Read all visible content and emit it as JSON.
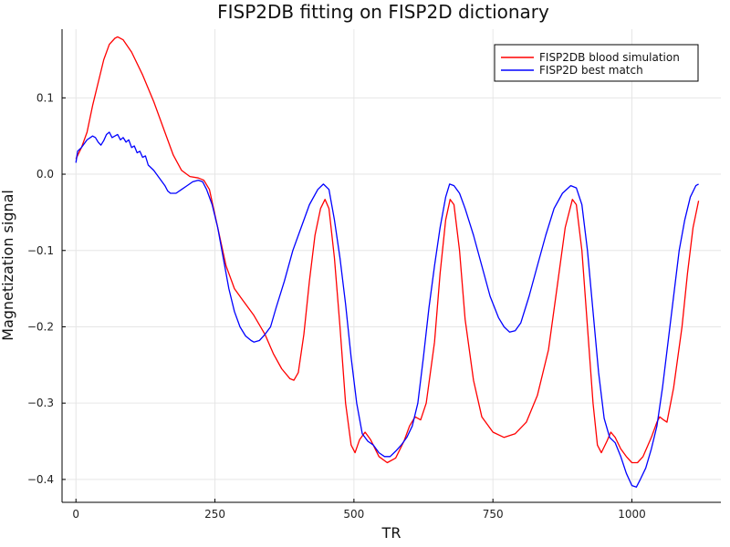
{
  "chart_data": {
    "type": "line",
    "title": "FISP2DB fitting on FISP2D dictionary",
    "xlabel": "TR",
    "ylabel": "Magnetization signal",
    "xlim": [
      -25,
      1160
    ],
    "ylim": [
      -0.43,
      0.19
    ],
    "xticks": [
      0,
      250,
      500,
      750,
      1000
    ],
    "yticks": [
      -0.4,
      -0.3,
      -0.2,
      -0.1,
      0.0,
      0.1
    ],
    "ytick_labels": [
      "−0.4",
      "−0.3",
      "−0.2",
      "−0.1",
      "0.0",
      "0.1"
    ],
    "grid": true,
    "legend_position": "top-right",
    "series": [
      {
        "name": "FISP2DB blood simulation",
        "color": "#ff0000",
        "points": [
          [
            0,
            0.02
          ],
          [
            10,
            0.035
          ],
          [
            20,
            0.055
          ],
          [
            30,
            0.09
          ],
          [
            40,
            0.12
          ],
          [
            50,
            0.15
          ],
          [
            60,
            0.17
          ],
          [
            70,
            0.178
          ],
          [
            75,
            0.18
          ],
          [
            85,
            0.176
          ],
          [
            100,
            0.16
          ],
          [
            120,
            0.13
          ],
          [
            140,
            0.095
          ],
          [
            160,
            0.055
          ],
          [
            175,
            0.025
          ],
          [
            190,
            0.005
          ],
          [
            205,
            -0.003
          ],
          [
            220,
            -0.005
          ],
          [
            230,
            -0.008
          ],
          [
            240,
            -0.02
          ],
          [
            255,
            -0.07
          ],
          [
            270,
            -0.12
          ],
          [
            285,
            -0.15
          ],
          [
            300,
            -0.165
          ],
          [
            320,
            -0.185
          ],
          [
            340,
            -0.21
          ],
          [
            355,
            -0.235
          ],
          [
            370,
            -0.255
          ],
          [
            385,
            -0.268
          ],
          [
            392,
            -0.27
          ],
          [
            400,
            -0.26
          ],
          [
            410,
            -0.21
          ],
          [
            420,
            -0.14
          ],
          [
            430,
            -0.08
          ],
          [
            440,
            -0.045
          ],
          [
            448,
            -0.033
          ],
          [
            455,
            -0.045
          ],
          [
            465,
            -0.11
          ],
          [
            475,
            -0.2
          ],
          [
            485,
            -0.3
          ],
          [
            495,
            -0.355
          ],
          [
            502,
            -0.365
          ],
          [
            510,
            -0.348
          ],
          [
            520,
            -0.338
          ],
          [
            530,
            -0.348
          ],
          [
            545,
            -0.37
          ],
          [
            560,
            -0.378
          ],
          [
            575,
            -0.372
          ],
          [
            590,
            -0.35
          ],
          [
            600,
            -0.33
          ],
          [
            610,
            -0.318
          ],
          [
            620,
            -0.322
          ],
          [
            630,
            -0.3
          ],
          [
            645,
            -0.22
          ],
          [
            655,
            -0.13
          ],
          [
            665,
            -0.06
          ],
          [
            673,
            -0.033
          ],
          [
            680,
            -0.04
          ],
          [
            690,
            -0.1
          ],
          [
            700,
            -0.19
          ],
          [
            715,
            -0.27
          ],
          [
            730,
            -0.318
          ],
          [
            750,
            -0.338
          ],
          [
            770,
            -0.345
          ],
          [
            790,
            -0.34
          ],
          [
            810,
            -0.325
          ],
          [
            830,
            -0.29
          ],
          [
            850,
            -0.23
          ],
          [
            865,
            -0.15
          ],
          [
            880,
            -0.07
          ],
          [
            893,
            -0.033
          ],
          [
            900,
            -0.04
          ],
          [
            910,
            -0.1
          ],
          [
            920,
            -0.2
          ],
          [
            930,
            -0.3
          ],
          [
            938,
            -0.355
          ],
          [
            945,
            -0.365
          ],
          [
            955,
            -0.35
          ],
          [
            962,
            -0.338
          ],
          [
            970,
            -0.345
          ],
          [
            980,
            -0.36
          ],
          [
            990,
            -0.37
          ],
          [
            1000,
            -0.378
          ],
          [
            1010,
            -0.378
          ],
          [
            1020,
            -0.37
          ],
          [
            1035,
            -0.345
          ],
          [
            1045,
            -0.325
          ],
          [
            1050,
            -0.318
          ],
          [
            1057,
            -0.322
          ],
          [
            1063,
            -0.325
          ],
          [
            1075,
            -0.28
          ],
          [
            1090,
            -0.2
          ],
          [
            1100,
            -0.13
          ],
          [
            1110,
            -0.07
          ],
          [
            1120,
            -0.035
          ]
        ]
      },
      {
        "name": "FISP2D best match",
        "color": "#0000ff",
        "points": [
          [
            0,
            0.015
          ],
          [
            3,
            0.03
          ],
          [
            10,
            0.035
          ],
          [
            20,
            0.045
          ],
          [
            30,
            0.05
          ],
          [
            35,
            0.048
          ],
          [
            40,
            0.042
          ],
          [
            45,
            0.038
          ],
          [
            50,
            0.044
          ],
          [
            55,
            0.052
          ],
          [
            60,
            0.055
          ],
          [
            65,
            0.048
          ],
          [
            70,
            0.05
          ],
          [
            75,
            0.052
          ],
          [
            80,
            0.045
          ],
          [
            85,
            0.048
          ],
          [
            90,
            0.042
          ],
          [
            95,
            0.045
          ],
          [
            100,
            0.035
          ],
          [
            105,
            0.037
          ],
          [
            110,
            0.028
          ],
          [
            115,
            0.03
          ],
          [
            120,
            0.022
          ],
          [
            125,
            0.024
          ],
          [
            130,
            0.012
          ],
          [
            140,
            0.005
          ],
          [
            150,
            -0.005
          ],
          [
            160,
            -0.015
          ],
          [
            165,
            -0.022
          ],
          [
            170,
            -0.025
          ],
          [
            180,
            -0.025
          ],
          [
            190,
            -0.02
          ],
          [
            200,
            -0.015
          ],
          [
            210,
            -0.01
          ],
          [
            220,
            -0.008
          ],
          [
            228,
            -0.01
          ],
          [
            235,
            -0.02
          ],
          [
            245,
            -0.04
          ],
          [
            255,
            -0.07
          ],
          [
            265,
            -0.11
          ],
          [
            275,
            -0.15
          ],
          [
            285,
            -0.18
          ],
          [
            295,
            -0.2
          ],
          [
            305,
            -0.212
          ],
          [
            315,
            -0.218
          ],
          [
            320,
            -0.22
          ],
          [
            330,
            -0.218
          ],
          [
            340,
            -0.21
          ],
          [
            350,
            -0.2
          ],
          [
            360,
            -0.175
          ],
          [
            375,
            -0.14
          ],
          [
            390,
            -0.1
          ],
          [
            405,
            -0.07
          ],
          [
            420,
            -0.04
          ],
          [
            435,
            -0.02
          ],
          [
            445,
            -0.013
          ],
          [
            455,
            -0.02
          ],
          [
            465,
            -0.06
          ],
          [
            475,
            -0.11
          ],
          [
            485,
            -0.17
          ],
          [
            495,
            -0.24
          ],
          [
            505,
            -0.3
          ],
          [
            515,
            -0.34
          ],
          [
            525,
            -0.35
          ],
          [
            535,
            -0.355
          ],
          [
            545,
            -0.365
          ],
          [
            555,
            -0.37
          ],
          [
            565,
            -0.37
          ],
          [
            575,
            -0.363
          ],
          [
            585,
            -0.355
          ],
          [
            595,
            -0.345
          ],
          [
            605,
            -0.33
          ],
          [
            615,
            -0.3
          ],
          [
            625,
            -0.24
          ],
          [
            635,
            -0.175
          ],
          [
            645,
            -0.12
          ],
          [
            655,
            -0.07
          ],
          [
            665,
            -0.03
          ],
          [
            672,
            -0.013
          ],
          [
            680,
            -0.015
          ],
          [
            690,
            -0.025
          ],
          [
            700,
            -0.045
          ],
          [
            715,
            -0.08
          ],
          [
            730,
            -0.12
          ],
          [
            745,
            -0.16
          ],
          [
            760,
            -0.188
          ],
          [
            770,
            -0.2
          ],
          [
            780,
            -0.207
          ],
          [
            790,
            -0.205
          ],
          [
            800,
            -0.195
          ],
          [
            815,
            -0.16
          ],
          [
            830,
            -0.12
          ],
          [
            845,
            -0.08
          ],
          [
            860,
            -0.045
          ],
          [
            875,
            -0.025
          ],
          [
            890,
            -0.015
          ],
          [
            900,
            -0.018
          ],
          [
            910,
            -0.04
          ],
          [
            920,
            -0.1
          ],
          [
            930,
            -0.18
          ],
          [
            940,
            -0.26
          ],
          [
            950,
            -0.32
          ],
          [
            960,
            -0.345
          ],
          [
            970,
            -0.352
          ],
          [
            980,
            -0.37
          ],
          [
            990,
            -0.392
          ],
          [
            1000,
            -0.408
          ],
          [
            1008,
            -0.41
          ],
          [
            1015,
            -0.4
          ],
          [
            1025,
            -0.385
          ],
          [
            1035,
            -0.36
          ],
          [
            1045,
            -0.33
          ],
          [
            1055,
            -0.28
          ],
          [
            1065,
            -0.22
          ],
          [
            1075,
            -0.16
          ],
          [
            1085,
            -0.1
          ],
          [
            1095,
            -0.06
          ],
          [
            1105,
            -0.03
          ],
          [
            1115,
            -0.015
          ],
          [
            1120,
            -0.013
          ]
        ]
      }
    ]
  }
}
